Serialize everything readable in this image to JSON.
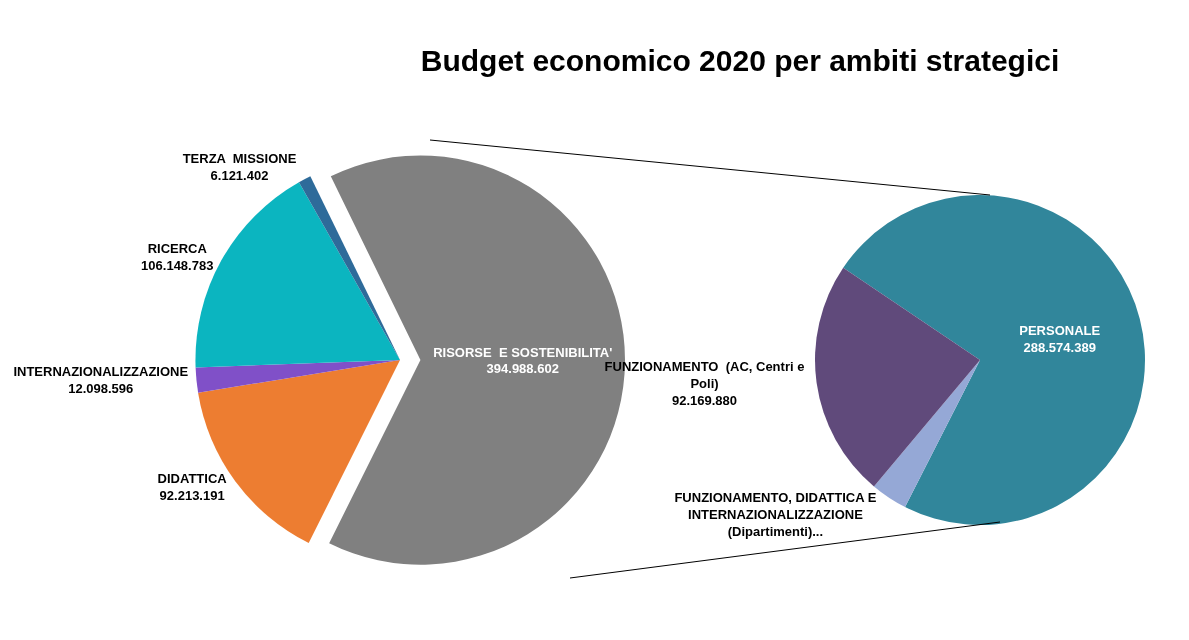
{
  "chart_data": [
    {
      "type": "pie",
      "title": "Budget economico 2020 per ambiti strategici",
      "categories": [
        "RISORSE  E SOSTENIBILITA'",
        "DIDATTICA",
        "INTERNAZIONALIZZAZIONE",
        "RICERCA",
        "TERZA  MISSIONE"
      ],
      "values": [
        394988602,
        92213191,
        12098596,
        106148783,
        6121402
      ],
      "colors": [
        "#808080",
        "#ed7d31",
        "#8050c8",
        "#0bb5c0",
        "#2e6b9a"
      ],
      "value_labels": [
        "394.988.602",
        "92.213.191",
        "12.098.596",
        "106.148.783",
        "6.121.402"
      ]
    },
    {
      "type": "pie",
      "categories": [
        "PERSONALE",
        "FUNZIONAMENTO, DIDATTICA E INTERNAZIONALIZZAZIONE (Dipartimenti)...",
        "FUNZIONAMENTO  (AC, Centri e Poli)"
      ],
      "values": [
        288574389,
        14244333,
        92169880
      ],
      "colors": [
        "#31869b",
        "#95a8d6",
        "#604a7b"
      ],
      "value_labels": [
        "288.574.389",
        null,
        "92.169.880"
      ]
    }
  ]
}
